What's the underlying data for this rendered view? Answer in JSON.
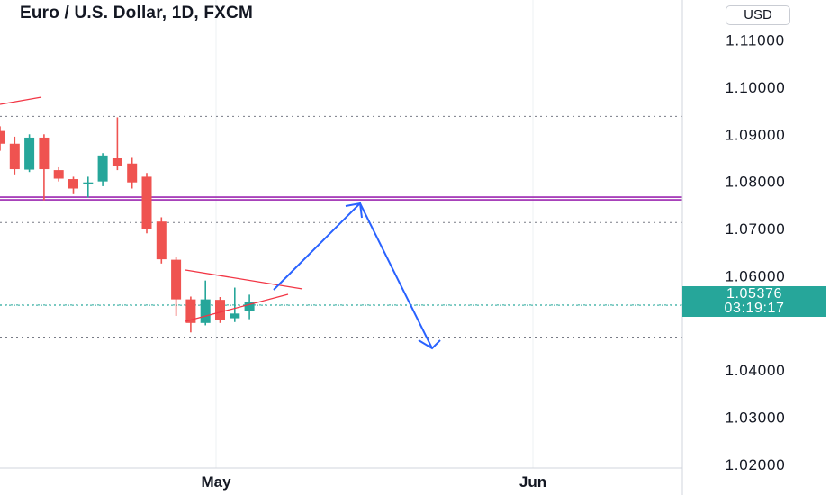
{
  "header": {
    "title": "Euro / U.S. Dollar, 1D, FXCM",
    "currency": "USD"
  },
  "price_label": {
    "price": "1.05376",
    "countdown": "03:19:17"
  },
  "colors": {
    "up": "#26a69a",
    "down": "#ef5350",
    "resistance": "#9c27b0",
    "projection": "#2962ff",
    "triangle": "#f23645"
  },
  "chart_data": {
    "type": "candlestick",
    "title": "Euro / U.S. Dollar, 1D, FXCM",
    "ylim": [
      1.0135,
      1.1185
    ],
    "yticks": [
      1.02,
      1.03,
      1.04,
      1.06,
      1.07,
      1.08,
      1.09,
      1.1,
      1.11
    ],
    "ytick_labels": [
      "1.02000",
      "1.03000",
      "1.04000",
      "1.06000",
      "1.07000",
      "1.08000",
      "1.09000",
      "1.10000",
      "1.11000"
    ],
    "xtick_labels": [
      "May",
      "Jun"
    ],
    "last_price": 1.05376,
    "candles": [
      {
        "o": 1.0907,
        "h": 1.0917,
        "l": 1.0865,
        "c": 1.088
      },
      {
        "o": 1.088,
        "h": 1.0895,
        "l": 1.0815,
        "c": 1.0826
      },
      {
        "o": 1.0825,
        "h": 1.09,
        "l": 1.082,
        "c": 1.0893
      },
      {
        "o": 1.0893,
        "h": 1.09,
        "l": 1.076,
        "c": 1.0826
      },
      {
        "o": 1.0824,
        "h": 1.083,
        "l": 1.08,
        "c": 1.0806
      },
      {
        "o": 1.0805,
        "h": 1.081,
        "l": 1.0773,
        "c": 1.0785
      },
      {
        "o": 1.0794,
        "h": 1.081,
        "l": 1.0766,
        "c": 1.0798
      },
      {
        "o": 1.08,
        "h": 1.086,
        "l": 1.079,
        "c": 1.0855
      },
      {
        "o": 1.0849,
        "h": 1.0936,
        "l": 1.0824,
        "c": 1.0832
      },
      {
        "o": 1.0838,
        "h": 1.085,
        "l": 1.0785,
        "c": 1.0798
      },
      {
        "o": 1.081,
        "h": 1.0818,
        "l": 1.069,
        "c": 1.07
      },
      {
        "o": 1.0715,
        "h": 1.0724,
        "l": 1.0626,
        "c": 1.0635
      },
      {
        "o": 1.0634,
        "h": 1.064,
        "l": 1.0515,
        "c": 1.055
      },
      {
        "o": 1.055,
        "h": 1.0556,
        "l": 1.048,
        "c": 1.05
      },
      {
        "o": 1.05,
        "h": 1.059,
        "l": 1.0495,
        "c": 1.055
      },
      {
        "o": 1.0549,
        "h": 1.0555,
        "l": 1.05,
        "c": 1.0507
      },
      {
        "o": 1.051,
        "h": 1.0575,
        "l": 1.0502,
        "c": 1.052
      },
      {
        "o": 1.0525,
        "h": 1.056,
        "l": 1.0508,
        "c": 1.0545
      }
    ],
    "horizontal_levels": [
      {
        "kind": "solid",
        "value": 1.0764
      },
      {
        "kind": "dotted",
        "value": 1.0938
      },
      {
        "kind": "dotted",
        "value": 1.0713
      },
      {
        "kind": "dotted",
        "value": 1.0538
      },
      {
        "kind": "dotted",
        "value": 1.047
      }
    ],
    "grid": true
  }
}
